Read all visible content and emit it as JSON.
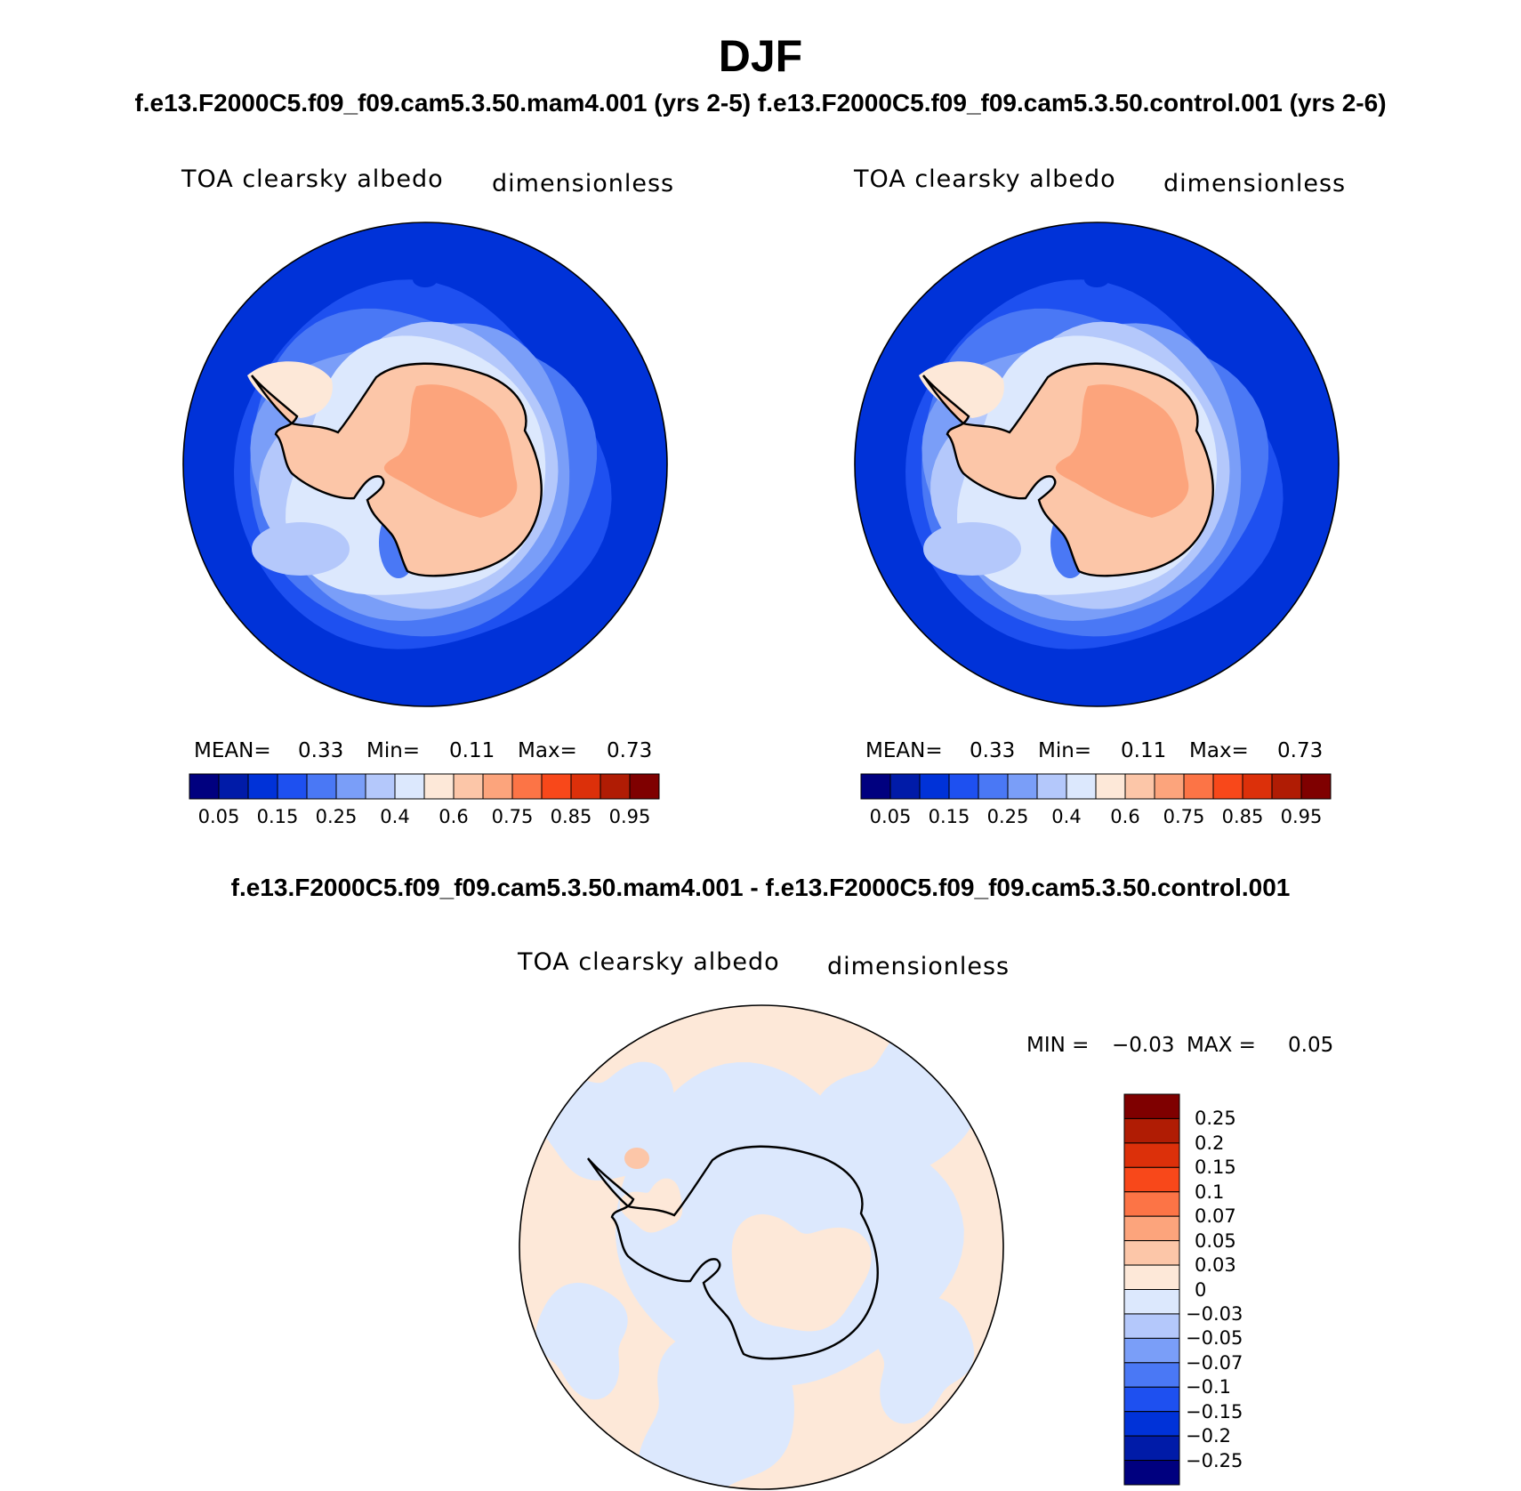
{
  "figure": {
    "season": "DJF",
    "runs_header": "f.e13.F2000C5.f09_f09.cam5.3.50.mam4.001 (yrs 2-5) f.e13.F2000C5.f09_f09.cam5.3.50.control.001 (yrs 2-6)",
    "diff_header": "f.e13.F2000C5.f09_f09.cam5.3.50.mam4.001 - f.e13.F2000C5.f09_f09.cam5.3.50.control.001"
  },
  "panels": [
    {
      "variable": "TOA clearsky albedo",
      "units": "dimensionless",
      "stats": {
        "mean_label": "MEAN=",
        "mean": "0.33",
        "min_label": "Min=",
        "min": "0.11",
        "max_label": "Max=",
        "max": "0.73"
      }
    },
    {
      "variable": "TOA clearsky albedo",
      "units": "dimensionless",
      "stats": {
        "mean_label": "MEAN=",
        "mean": "0.33",
        "min_label": "Min=",
        "min": "0.11",
        "max_label": "Max=",
        "max": "0.73"
      }
    },
    {
      "variable": "TOA clearsky albedo",
      "units": "dimensionless",
      "stats": {
        "min_label": "MIN =",
        "min": "−0.03",
        "max_label": "MAX =",
        "max": "0.05"
      }
    }
  ],
  "colorbar_abs": {
    "labels": [
      "0.05",
      "0.15",
      "0.25",
      "0.4",
      "0.6",
      "0.75",
      "0.85",
      "0.95"
    ],
    "colors": [
      "#00007f",
      "#001ba8",
      "#0032d8",
      "#1e50f0",
      "#4a78f5",
      "#7a9ef8",
      "#b4c8fb",
      "#dce8fd",
      "#fde8d8",
      "#fcc6a8",
      "#fca47c",
      "#fc7446",
      "#f8481a",
      "#dc300a",
      "#b01c04",
      "#7f0000"
    ]
  },
  "colorbar_diff": {
    "labels": [
      "0.25",
      "0.2",
      "0.15",
      "0.1",
      "0.07",
      "0.05",
      "0.03",
      "0",
      "−0.03",
      "−0.05",
      "−0.07",
      "−0.1",
      "−0.15",
      "−0.2",
      "−0.25"
    ],
    "colors": [
      "#7f0000",
      "#b01c04",
      "#dc300a",
      "#f8481a",
      "#fc7446",
      "#fca47c",
      "#fcc6a8",
      "#fde8d8",
      "#dce8fd",
      "#b4c8fb",
      "#7a9ef8",
      "#4a78f5",
      "#1e50f0",
      "#0032d8",
      "#001ba8",
      "#00007f"
    ]
  },
  "map_colors": {
    "ocean": "#0032d8",
    "band1": "#1e50f0",
    "band2": "#4a78f5",
    "band3": "#7a9ef8",
    "band4": "#b4c8fb",
    "band5": "#dce8fd",
    "ice": "#fde8d8",
    "continent": "#fcc6a8",
    "plateau": "#fca47c",
    "diff_pos": "#fde8d8",
    "diff_neg": "#dce8fd",
    "diff_pos_strong": "#fcc6a8"
  }
}
